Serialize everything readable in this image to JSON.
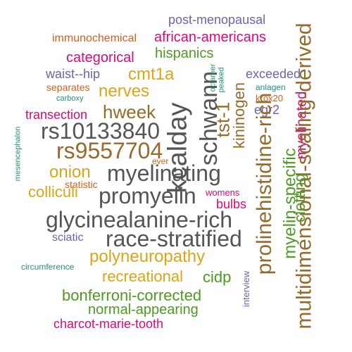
{
  "colors": {
    "purple": "#6b64ad",
    "orange": "#d2601b",
    "magenta": "#d9087b",
    "green": "#4b9b22",
    "gold": "#dca517",
    "brown": "#946b2a",
    "gray": "#555555",
    "teal": "#21917a"
  },
  "words": [
    {
      "text": "post-menopausal",
      "color": "#6b64ad"
    },
    {
      "text": "immunochemical",
      "color": "#d2601b"
    },
    {
      "text": "african-americans",
      "color": "#d9087b"
    },
    {
      "text": "categorical",
      "color": "#d9087b"
    },
    {
      "text": "hispanics",
      "color": "#4b9b22"
    },
    {
      "text": "waist--hip",
      "color": "#6b64ad"
    },
    {
      "text": "separates",
      "color": "#d2601b"
    },
    {
      "text": "carboxy",
      "color": "#21917a"
    },
    {
      "text": "cmt1a",
      "color": "#dca517"
    },
    {
      "text": "nerves",
      "color": "#dca517"
    },
    {
      "text": "transection",
      "color": "#d9087b"
    },
    {
      "text": "hweek",
      "color": "#946b2a"
    },
    {
      "text": "rs10133840",
      "color": "#555555"
    },
    {
      "text": "rs9557704",
      "color": "#946b2a"
    },
    {
      "text": "kcalday",
      "color": "#555555"
    },
    {
      "text": "schwann",
      "color": "#555555"
    },
    {
      "text": "octamer",
      "color": "#21917a"
    },
    {
      "text": "peaked",
      "color": "#21917a"
    },
    {
      "text": "tst-1",
      "color": "#946b2a"
    },
    {
      "text": "kininogen",
      "color": "#946b2a"
    },
    {
      "text": "exceeded",
      "color": "#6b64ad"
    },
    {
      "text": "anlagen",
      "color": "#21917a"
    },
    {
      "text": "krox20",
      "color": "#d2601b"
    },
    {
      "text": "egr2",
      "color": "#6b64ad"
    },
    {
      "text": "myelinated",
      "color": "#d9087b"
    },
    {
      "text": "multidimensional-scaling-derived",
      "color": "#946b2a"
    },
    {
      "text": "prolinehistidine-rich",
      "color": "#946b2a"
    },
    {
      "text": "myelin-specific",
      "color": "#4b9b22"
    },
    {
      "text": "clotting",
      "color": "#4b9b22"
    },
    {
      "text": "mesencephalon",
      "color": "#21917a"
    },
    {
      "text": "ever",
      "color": "#d2601b"
    },
    {
      "text": "onion",
      "color": "#dca517"
    },
    {
      "text": "myelinating",
      "color": "#555555"
    },
    {
      "text": "statistic",
      "color": "#d2601b"
    },
    {
      "text": "colliculi",
      "color": "#dca517"
    },
    {
      "text": "promyelin",
      "color": "#555555"
    },
    {
      "text": "womens",
      "color": "#d9087b"
    },
    {
      "text": "bulbs",
      "color": "#d9087b"
    },
    {
      "text": "glycinealanine-rich",
      "color": "#555555"
    },
    {
      "text": "sciatic",
      "color": "#6b64ad"
    },
    {
      "text": "race-stratified",
      "color": "#555555"
    },
    {
      "text": "polyneuropathy",
      "color": "#dca517"
    },
    {
      "text": "circumference",
      "color": "#21917a"
    },
    {
      "text": "recreational",
      "color": "#dca517"
    },
    {
      "text": "cidp",
      "color": "#4b9b22"
    },
    {
      "text": "interview",
      "color": "#6b64ad"
    },
    {
      "text": "bonferroni-corrected",
      "color": "#4b9b22"
    },
    {
      "text": "normal-appearing",
      "color": "#4b9b22"
    },
    {
      "text": "charcot-marie-tooth",
      "color": "#d9087b"
    }
  ]
}
